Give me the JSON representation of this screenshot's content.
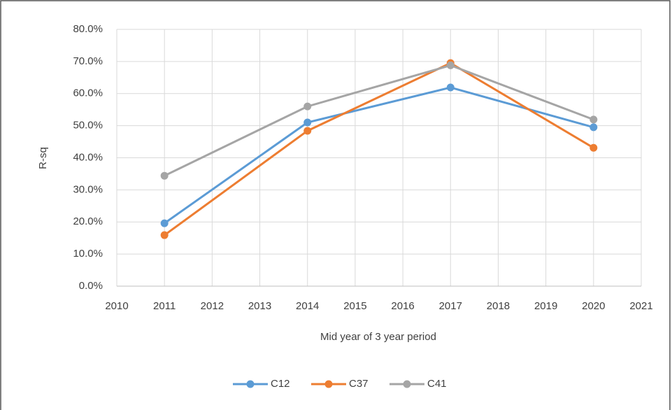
{
  "chart_data": {
    "type": "line",
    "x_label": "Mid year of 3 year period",
    "y_label": "R-sq",
    "x": [
      2011,
      2014,
      2017,
      2020
    ],
    "series": [
      {
        "name": "C12",
        "color": "#5b9bd5",
        "values": [
          19.6,
          51.0,
          61.9,
          49.5
        ]
      },
      {
        "name": "C37",
        "color": "#ed7d31",
        "values": [
          15.9,
          48.4,
          69.5,
          43.1
        ]
      },
      {
        "name": "C41",
        "color": "#a5a5a5",
        "values": [
          34.4,
          56.0,
          68.8,
          51.9
        ]
      }
    ],
    "xlim": [
      2010,
      2021
    ],
    "xticks": [
      2010,
      2011,
      2012,
      2013,
      2014,
      2015,
      2016,
      2017,
      2018,
      2019,
      2020,
      2021
    ],
    "ylim": [
      0,
      80
    ],
    "yticks": [
      {
        "value": 0,
        "label": "0.0%"
      },
      {
        "value": 10,
        "label": "10.0%"
      },
      {
        "value": 20,
        "label": "20.0%"
      },
      {
        "value": 30,
        "label": "30.0%"
      },
      {
        "value": 40,
        "label": "40.0%"
      },
      {
        "value": 50,
        "label": "50.0%"
      },
      {
        "value": 60,
        "label": "60.0%"
      },
      {
        "value": 70,
        "label": "70.0%"
      },
      {
        "value": 80,
        "label": "80.0%"
      }
    ],
    "grid": true,
    "legend": "bottom"
  }
}
